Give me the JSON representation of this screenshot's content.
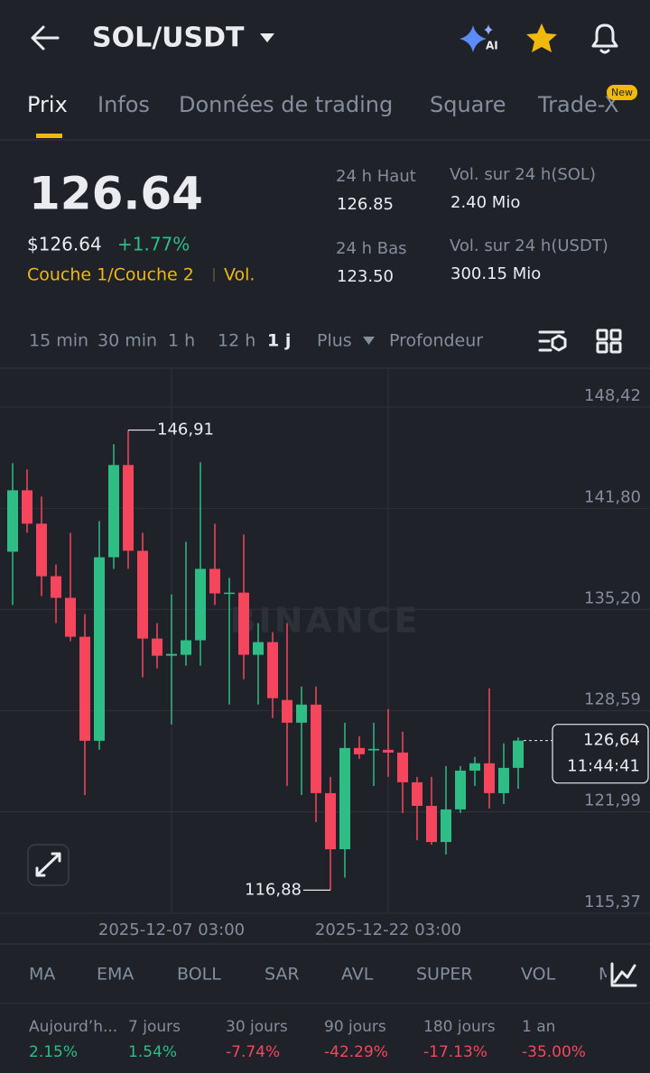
{
  "header": {
    "pair": "SOL/USDT",
    "ai_badge": "AI"
  },
  "tabs": [
    "Prix",
    "Infos",
    "Données de trading",
    "Square",
    "Trade-X"
  ],
  "new_badge": "New",
  "price": {
    "last": "126.64",
    "usd": "$126.64",
    "change": "+1.77%",
    "tags": [
      "Couche 1/Couche 2",
      "Vol."
    ]
  },
  "stats": [
    {
      "label": "24 h Haut",
      "value": "126.85"
    },
    {
      "label": "24 h Bas",
      "value": "123.50"
    },
    {
      "label": "Vol. sur 24 h(SOL)",
      "value": "2.40 Mio"
    },
    {
      "label": "Vol. sur 24 h(USDT)",
      "value": "300.15 Mio"
    }
  ],
  "intervals": [
    "15 min",
    "30 min",
    "1 h",
    "12 h",
    "1 j",
    "Plus",
    "Profondeur"
  ],
  "chart_data": {
    "type": "candlestick",
    "watermark": "BINANCE",
    "categories": [
      null,
      null,
      null,
      null,
      null,
      null,
      null,
      null,
      null,
      null,
      null,
      "2025-12-07 03:00",
      null,
      null,
      null,
      null,
      null,
      null,
      null,
      null,
      null,
      null,
      null,
      null,
      null,
      null,
      "2025-12-22 03:00",
      null,
      null,
      null,
      null,
      null,
      null,
      null,
      null,
      null
    ],
    "open": [
      138.97,
      142.98,
      140.8,
      137.37,
      135.96,
      133.42,
      126.63,
      138.61,
      144.63,
      139.03,
      133.3,
      132.18,
      132.24,
      133.19,
      137.85,
      136.25,
      136.3,
      132.24,
      133.07,
      129.29,
      127.81,
      128.99,
      123.21,
      119.55,
      126.16,
      126.0,
      126.04,
      125.86,
      123.92,
      122.38,
      120.02,
      122.15,
      124.68,
      125.16,
      123.21,
      124.86
    ],
    "high": [
      144.75,
      144.34,
      142.57,
      138.14,
      140.21,
      134.9,
      140.97,
      145.99,
      146.91,
      140.21,
      134.31,
      136.19,
      139.62,
      144.81,
      140.8,
      137.26,
      140.09,
      134.31,
      133.72,
      134.31,
      130.17,
      130.17,
      124.27,
      127.81,
      126.93,
      127.81,
      128.7,
      127.22,
      124.27,
      124.27,
      124.98,
      124.98,
      125.57,
      130.06,
      126.46,
      126.85
    ],
    "low": [
      135.49,
      140.21,
      136.08,
      134.31,
      133.13,
      123.09,
      126.04,
      137.85,
      137.85,
      130.77,
      131.36,
      127.7,
      131.53,
      131.53,
      135.49,
      128.99,
      130.65,
      128.99,
      128.11,
      123.68,
      123.09,
      121.32,
      116.88,
      117.7,
      125.45,
      123.68,
      124.27,
      121.91,
      120.14,
      119.84,
      119.2,
      121.91,
      123.68,
      122.21,
      122.5,
      123.5
    ],
    "close": [
      142.98,
      140.8,
      137.37,
      135.96,
      133.42,
      126.63,
      138.61,
      144.63,
      139.03,
      133.3,
      132.18,
      132.3,
      133.19,
      137.85,
      136.25,
      136.3,
      132.24,
      133.07,
      129.41,
      127.81,
      128.99,
      123.21,
      119.55,
      126.16,
      125.75,
      126.1,
      125.86,
      123.92,
      122.38,
      120.02,
      122.15,
      124.68,
      125.16,
      123.21,
      124.86,
      126.64
    ],
    "up_color": "#2ebd85",
    "down_color": "#f6465d",
    "ylim": [
      115.37,
      150.95
    ],
    "yticks": [
      {
        "value": 148.42,
        "label": "148,42"
      },
      {
        "value": 141.8,
        "label": "141,80"
      },
      {
        "value": 135.2,
        "label": "135,20"
      },
      {
        "value": 128.59,
        "label": "128,59"
      },
      {
        "value": 121.99,
        "label": "121,99"
      },
      {
        "value": 115.37,
        "label": "115,37"
      }
    ],
    "grid": true,
    "annotations": [
      {
        "kind": "high",
        "value": 146.91,
        "label": "146,91"
      },
      {
        "kind": "low",
        "value": 116.88,
        "label": "116,88"
      }
    ],
    "price_tag": {
      "value": 126.64,
      "label": "126,64",
      "countdown": "11:44:41"
    }
  },
  "indicators": [
    "MA",
    "EMA",
    "BOLL",
    "SAR",
    "AVL",
    "SUPER",
    "VOL",
    "M"
  ],
  "performance": [
    {
      "label": "Aujourd’h...",
      "value": "2.15%"
    },
    {
      "label": "7 jours",
      "value": "1.54%"
    },
    {
      "label": "30 jours",
      "value": "-7.74%"
    },
    {
      "label": "90 jours",
      "value": "-42.29%"
    },
    {
      "label": "180 jours",
      "value": "-17.13%"
    },
    {
      "label": "1 an",
      "value": "-35.00%"
    }
  ]
}
